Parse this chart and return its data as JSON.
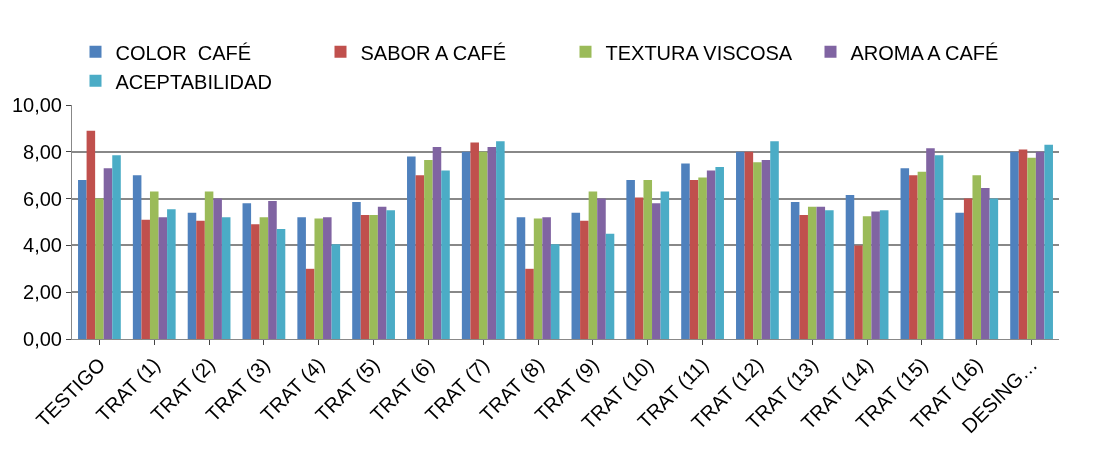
{
  "chart_data": {
    "type": "bar",
    "categories": [
      "TESTIGO",
      "TRAT (1)",
      "TRAT (2)",
      "TRAT (3)",
      "TRAT (4)",
      "TRAT (5)",
      "TRAT (6)",
      "TRAT (7)",
      "TRAT (8)",
      "TRAT (9)",
      "TRAT (10)",
      "TRAT (11)",
      "TRAT (12)",
      "TRAT (13)",
      "TRAT (14)",
      "TRAT (15)",
      "TRAT (16)",
      "DESING…"
    ],
    "series": [
      {
        "name": "COLOR  CAFÉ",
        "color": "#4f81bd",
        "values": [
          6.8,
          7.0,
          5.4,
          5.8,
          5.2,
          5.85,
          7.8,
          8.0,
          5.2,
          5.4,
          6.8,
          7.5,
          8.0,
          5.85,
          6.15,
          7.3,
          5.4,
          8.0
        ]
      },
      {
        "name": "SABOR A CAFÉ",
        "color": "#c0504d",
        "values": [
          8.9,
          5.1,
          5.05,
          4.9,
          3.0,
          5.3,
          7.0,
          8.4,
          3.0,
          5.05,
          6.05,
          6.8,
          8.0,
          5.3,
          4.0,
          7.0,
          6.0,
          8.1
        ]
      },
      {
        "name": "TEXTURA VISCOSA",
        "color": "#9bbb59",
        "values": [
          6.0,
          6.3,
          6.3,
          5.2,
          5.15,
          5.3,
          7.65,
          8.0,
          5.15,
          6.3,
          6.8,
          6.9,
          7.55,
          5.65,
          5.25,
          7.15,
          7.0,
          7.75
        ]
      },
      {
        "name": "AROMA A CAFÉ",
        "color": "#8064a2",
        "values": [
          7.3,
          5.2,
          6.0,
          5.9,
          5.2,
          5.65,
          8.2,
          8.2,
          5.2,
          6.0,
          5.8,
          7.2,
          7.65,
          5.65,
          5.45,
          8.15,
          6.45,
          8.0
        ]
      },
      {
        "name": "ACEPTABILIDAD",
        "color": "#4bacc6",
        "values": [
          7.85,
          5.55,
          5.2,
          4.7,
          4.05,
          5.5,
          7.2,
          8.45,
          4.05,
          4.5,
          6.3,
          7.35,
          8.45,
          5.5,
          5.5,
          7.85,
          6.0,
          8.3
        ]
      }
    ],
    "ylim": [
      0,
      10
    ],
    "yticks": [
      {
        "value": 0,
        "label": "0,00"
      },
      {
        "value": 2,
        "label": "2,00"
      },
      {
        "value": 4,
        "label": "4,00"
      },
      {
        "value": 6,
        "label": "6,00"
      },
      {
        "value": 8,
        "label": "8,00"
      },
      {
        "value": 10,
        "label": "10,00"
      }
    ],
    "grid": "y",
    "legend": "top"
  }
}
